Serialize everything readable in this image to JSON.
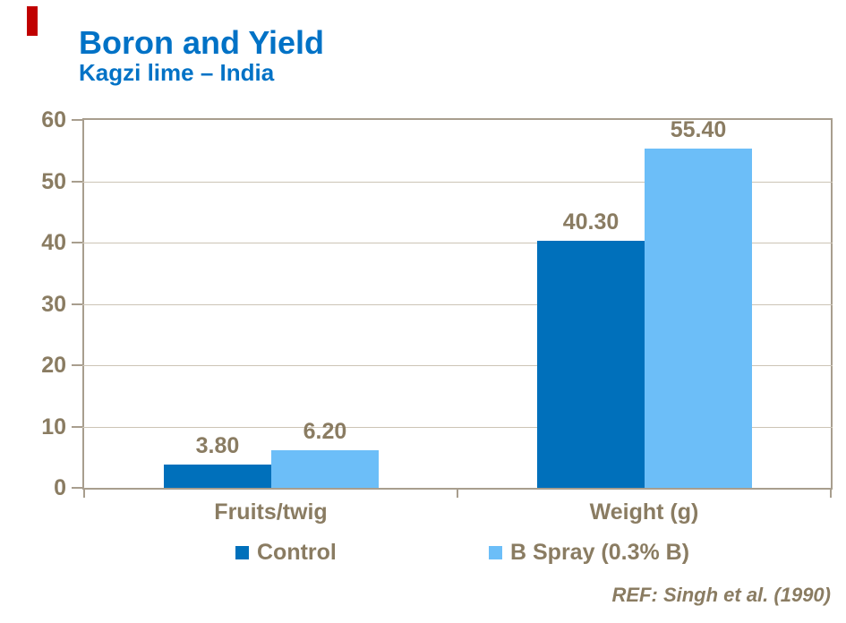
{
  "header": {
    "title": "Boron and Yield",
    "subtitle": "Kagzi lime – India"
  },
  "footer": {
    "ref": "REF: Singh et al. (1990)"
  },
  "chart_data": {
    "type": "bar",
    "title": "Boron and Yield",
    "subtitle": "Kagzi lime – India",
    "categories": [
      "Fruits/twig",
      "Weight (g)"
    ],
    "series": [
      {
        "name": "Control",
        "values": [
          3.8,
          40.3
        ],
        "value_labels": [
          "3.80",
          "40.30"
        ],
        "color": "#0070BB"
      },
      {
        "name": "B Spray (0.3% B)",
        "values": [
          6.2,
          55.4
        ],
        "value_labels": [
          "6.20",
          "55.40"
        ],
        "color": "#6CBEF8"
      }
    ],
    "xlabel": "",
    "ylabel": "",
    "ylim": [
      0,
      60
    ],
    "yticks": [
      0,
      10,
      20,
      30,
      40,
      50,
      60
    ],
    "grid": "horizontal",
    "legend_position": "bottom",
    "annotation": "REF: Singh et al. (1990)"
  },
  "colors": {
    "accent_bar": "#C00000",
    "title_blue": "#0072C6",
    "text_brown": "#8A7C62",
    "axis_line": "#A89E8E",
    "gridline": "#CCC4B6"
  }
}
